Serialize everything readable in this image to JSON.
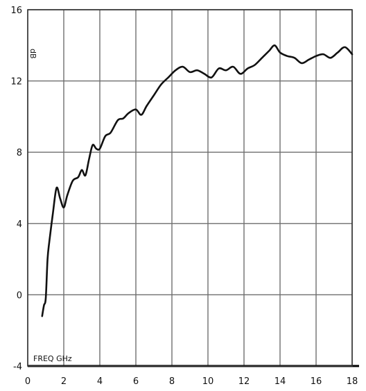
{
  "chart_data": {
    "type": "line",
    "title": "",
    "xlabel": "FREQ GHz",
    "ylabel": "dB",
    "xlim": [
      0,
      18
    ],
    "ylim": [
      -4,
      16
    ],
    "grid": true,
    "x_ticks": [
      "0",
      "2",
      "4",
      "6",
      "8",
      "10",
      "12",
      "14",
      "16",
      "18"
    ],
    "y_ticks": [
      "16",
      "12",
      "8",
      "4",
      "0",
      "-4"
    ],
    "series": [
      {
        "color": "#111111",
        "x": [
          0.8,
          0.9,
          1.0,
          1.1,
          1.2,
          1.4,
          1.6,
          1.8,
          2.0,
          2.2,
          2.5,
          2.8,
          3.0,
          3.2,
          3.4,
          3.6,
          3.8,
          4.0,
          4.3,
          4.6,
          5.0,
          5.3,
          5.6,
          6.0,
          6.3,
          6.6,
          7.0,
          7.4,
          7.8,
          8.2,
          8.6,
          9.0,
          9.4,
          9.8,
          10.2,
          10.6,
          11.0,
          11.4,
          11.8,
          12.2,
          12.6,
          13.0,
          13.4,
          13.7,
          14.0,
          14.4,
          14.8,
          15.2,
          15.6,
          16.0,
          16.4,
          16.8,
          17.2,
          17.6,
          18.0
        ],
        "values": [
          -1.2,
          -0.6,
          -0.2,
          2.0,
          3.0,
          4.6,
          6.0,
          5.4,
          4.9,
          5.6,
          6.4,
          6.6,
          7.0,
          6.7,
          7.6,
          8.4,
          8.2,
          8.2,
          8.9,
          9.1,
          9.8,
          9.9,
          10.2,
          10.4,
          10.1,
          10.6,
          11.2,
          11.8,
          12.2,
          12.6,
          12.8,
          12.5,
          12.6,
          12.4,
          12.2,
          12.7,
          12.6,
          12.8,
          12.4,
          12.7,
          12.9,
          13.3,
          13.7,
          14.0,
          13.6,
          13.4,
          13.3,
          13.0,
          13.2,
          13.4,
          13.5,
          13.3,
          13.6,
          13.9,
          13.5
        ]
      }
    ]
  }
}
